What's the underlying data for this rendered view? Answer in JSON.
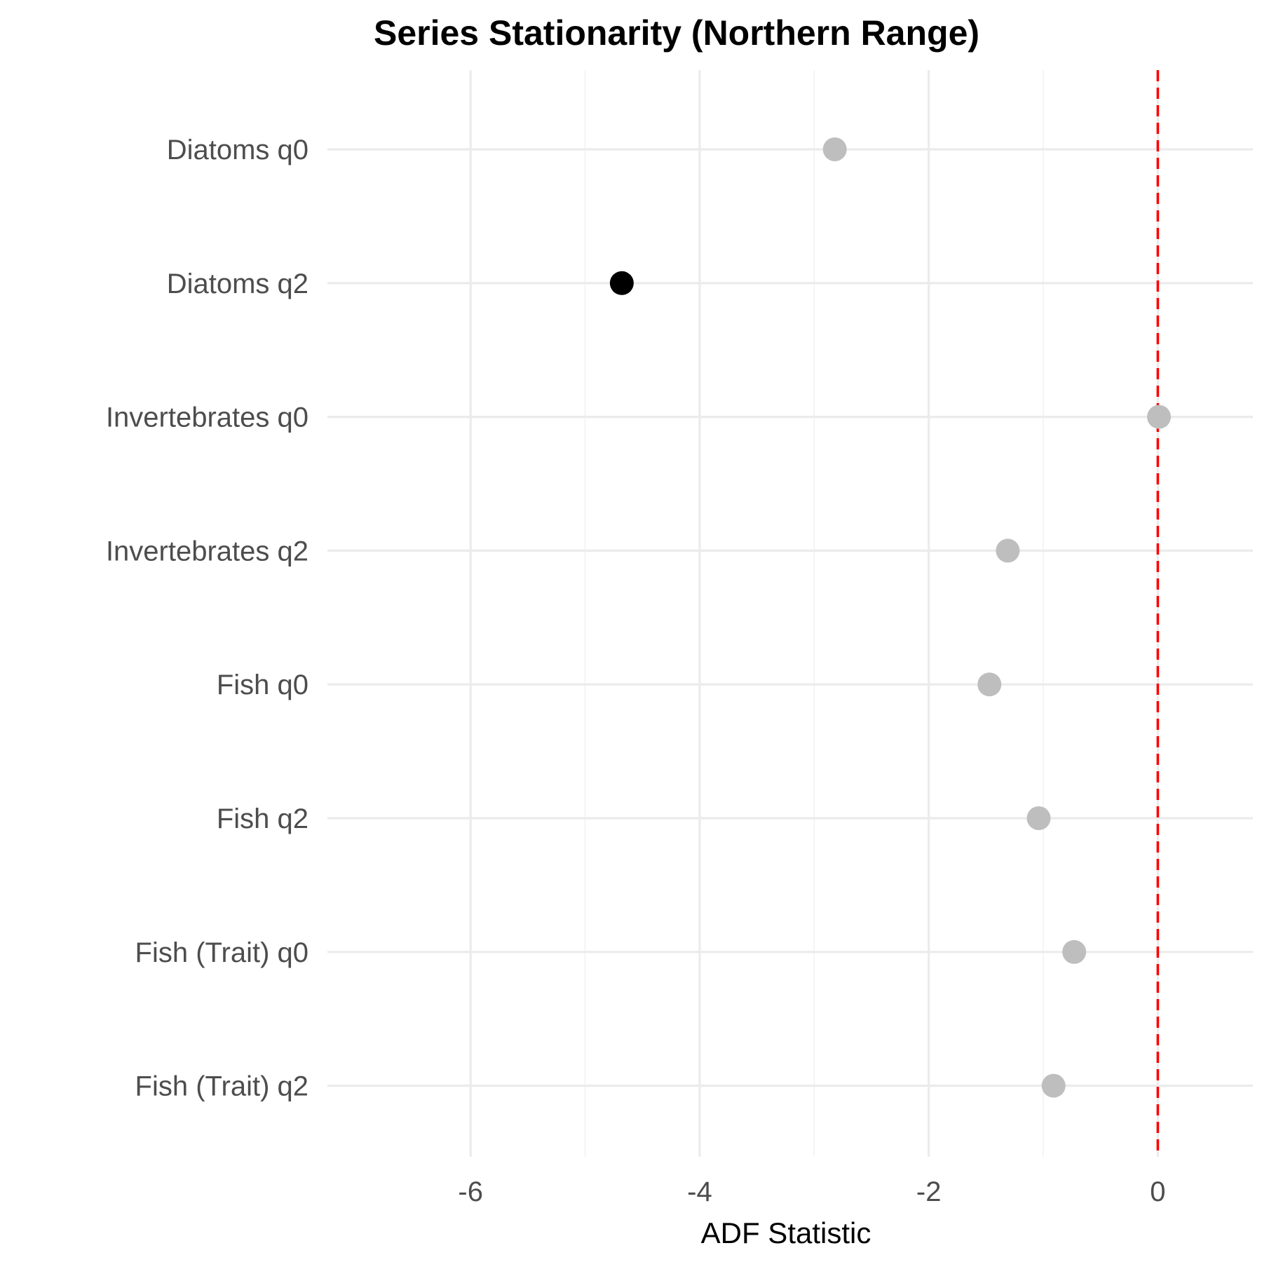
{
  "chart_data": {
    "type": "scatter",
    "title": "Series Stationarity (Northern Range)",
    "xlabel": "ADF Statistic",
    "ylabel": "",
    "xlim": [
      -7.25,
      0.83
    ],
    "xticks": [
      -6,
      -4,
      -2,
      0
    ],
    "xtick_labels": [
      "-6",
      "-4",
      "-2",
      "0"
    ],
    "categories": [
      "Diatoms q0",
      "Diatoms q2",
      "Invertebrates q0",
      "Invertebrates q2",
      "Fish q0",
      "Fish q2",
      "Fish (Trait) q0",
      "Fish (Trait) q2"
    ],
    "values": [
      -2.82,
      -4.68,
      0.01,
      -1.31,
      -1.47,
      -1.04,
      -0.73,
      -0.91
    ],
    "highlighted": [
      false,
      true,
      false,
      false,
      false,
      false,
      false,
      false
    ],
    "colors": {
      "default_point": "#bebebe",
      "highlight_point": "#000000",
      "reference_line": "#ff0000"
    },
    "reference_line": {
      "x": 0,
      "style": "dashed"
    },
    "grid": true,
    "legend": "none"
  }
}
